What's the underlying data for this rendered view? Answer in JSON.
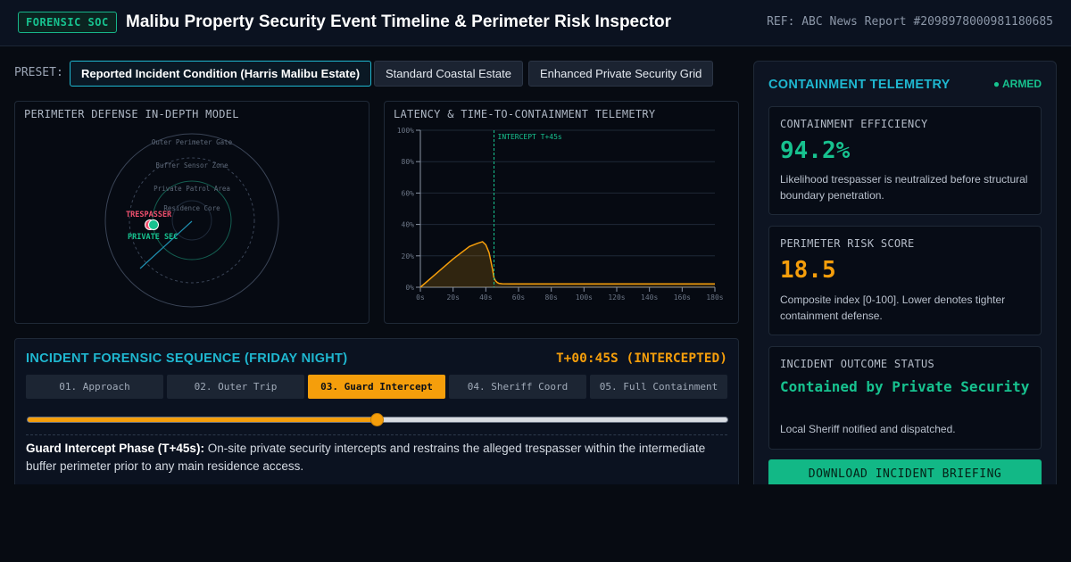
{
  "header": {
    "badge": "FORENSIC SOC",
    "title": "Malibu Property Security Event Timeline & Perimeter Risk Inspector",
    "ref": "REF: ABC News Report #2098978000981180685"
  },
  "presets": {
    "label": "PRESET:",
    "items": [
      {
        "label": "Reported Incident Condition (Harris Malibu Estate)",
        "active": true
      },
      {
        "label": "Standard Coastal Estate",
        "active": false
      },
      {
        "label": "Enhanced Private Security Grid",
        "active": false
      }
    ]
  },
  "defense_model": {
    "title": "PERIMETER DEFENSE IN-DEPTH MODEL",
    "rings": [
      "Outer Perimeter Gate",
      "Buffer Sensor Zone",
      "Private Patrol Area",
      "Residence Core"
    ],
    "trespasser_label": "TRESPASSER",
    "security_label": "PRIVATE SEC"
  },
  "chart_data": {
    "type": "area",
    "title": "LATENCY & TIME-TO-CONTAINMENT TELEMETRY",
    "xlabel": "",
    "ylabel": "",
    "x_ticks": [
      "0s",
      "20s",
      "40s",
      "60s",
      "80s",
      "100s",
      "120s",
      "140s",
      "160s",
      "180s"
    ],
    "y_ticks": [
      "0%",
      "20%",
      "40%",
      "60%",
      "80%",
      "100%"
    ],
    "xlim": [
      0,
      180
    ],
    "ylim": [
      0,
      100
    ],
    "grid": true,
    "series": [
      {
        "x": [
          0,
          10,
          20,
          30,
          35,
          38,
          40,
          42,
          44,
          45,
          46,
          47,
          48,
          50,
          55,
          60,
          80,
          100,
          120,
          140,
          160,
          180
        ],
        "y": [
          0,
          9,
          18,
          26,
          28,
          29,
          27,
          22,
          12,
          6,
          4,
          3,
          2.5,
          2.2,
          2.1,
          2.1,
          2.1,
          2.1,
          2.1,
          2.1,
          2.1,
          2.1
        ]
      }
    ],
    "annotation": {
      "x": 45,
      "label": "INTERCEPT T+45s"
    },
    "colors": {
      "line": "#f59e0b",
      "intercept": "#17c28f",
      "grid": "#1f2937"
    }
  },
  "sequence": {
    "title": "INCIDENT FORENSIC SEQUENCE (FRIDAY NIGHT)",
    "time": "T+00:45S (INTERCEPTED)",
    "steps": [
      "01. Approach",
      "02. Outer Trip",
      "03. Guard Intercept",
      "04. Sheriff Coord",
      "05. Full Containment"
    ],
    "active_step": 2,
    "slider_fraction": 0.5,
    "desc_heading": "Guard Intercept Phase (T+45s):",
    "desc_body": " On-site private security intercepts and restrains the alleged trespasser within the intermediate buffer perimeter prior to any main residence access."
  },
  "telemetry": {
    "title": "CONTAINMENT TELEMETRY",
    "status": "● ARMED",
    "efficiency": {
      "label": "CONTAINMENT EFFICIENCY",
      "value": "94.2%",
      "note": "Likelihood trespasser is neutralized before structural boundary penetration."
    },
    "risk": {
      "label": "PERIMETER RISK SCORE",
      "value": "18.5",
      "note": "Composite index [0-100]. Lower denotes tighter containment defense."
    },
    "outcome": {
      "label": "INCIDENT OUTCOME STATUS",
      "value": "Contained by Private Security",
      "note": "Local Sheriff notified and dispatched."
    },
    "download_label": "DOWNLOAD INCIDENT BRIEFING"
  },
  "colors": {
    "accent": "#1fb7d0",
    "warning": "#f59e0b",
    "success": "#17c28f",
    "danger": "#f0506e"
  }
}
